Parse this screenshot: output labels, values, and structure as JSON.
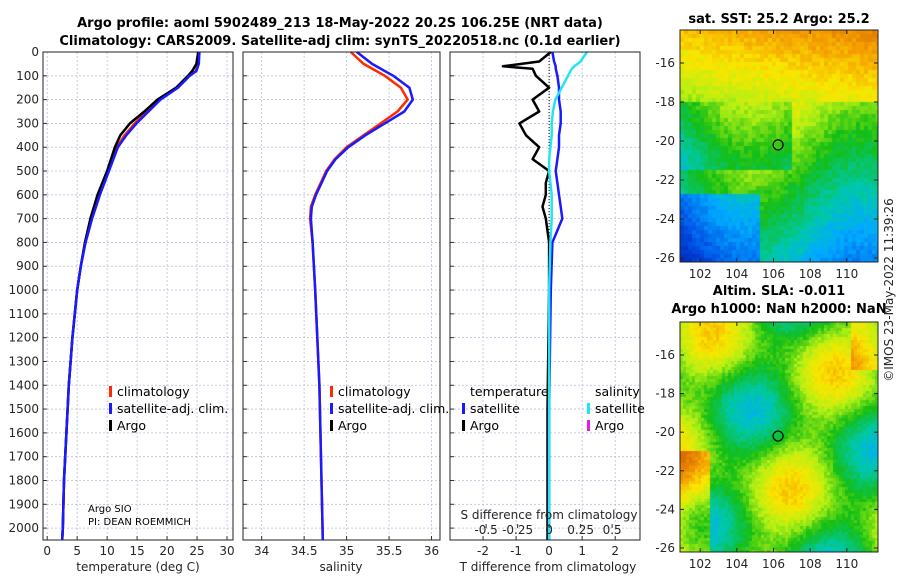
{
  "title_line1": "Argo profile: aoml 5902489_213 18-May-2022 20.2S 106.25E (NRT data)",
  "title_line2": "Climatology: CARS2009. Satellite-adj clim: synTS_20220518.nc (0.1d earlier)",
  "timestamp": "©IMOS 23-May-2022 11:39:26",
  "colors": {
    "climatology": "#ff2a00",
    "satellite_clim": "#1a1aff",
    "argo": "#000000",
    "sal_satellite": "#22e5f0",
    "sal_argo": "#e020e0",
    "grid": "#b8bfe0"
  },
  "chart_data": [
    {
      "type": "line",
      "name": "temperature",
      "xlabel": "temperature (deg C)",
      "ylabel": "",
      "xlim": [
        -0.7,
        31
      ],
      "ylim": [
        2050,
        0
      ],
      "xticks": [
        0,
        5,
        10,
        15,
        20,
        25,
        30
      ],
      "yticks": [
        0,
        100,
        200,
        300,
        400,
        500,
        600,
        700,
        800,
        900,
        1000,
        1100,
        1200,
        1300,
        1400,
        1500,
        1600,
        1700,
        1800,
        1900,
        2000
      ],
      "grid": true,
      "legend": [
        "climatology",
        "satellite-adj. clim.",
        "Argo"
      ],
      "legend_position": "center-right",
      "annotation": [
        "Argo SIO",
        "PI: DEAN ROEMMICH"
      ],
      "depth": [
        0,
        50,
        80,
        100,
        150,
        200,
        250,
        300,
        350,
        400,
        500,
        600,
        700,
        800,
        900,
        1000,
        1200,
        1400,
        1600,
        1800,
        2000,
        2050
      ],
      "series": [
        {
          "name": "climatology",
          "values": [
            25.3,
            25.2,
            24.8,
            23.6,
            21.6,
            18.6,
            16.6,
            14.6,
            12.9,
            11.6,
            10.1,
            8.6,
            7.3,
            6.3,
            5.6,
            5.0,
            4.2,
            3.6,
            3.2,
            2.8,
            2.6,
            2.5
          ]
        },
        {
          "name": "satellite-adj. clim.",
          "values": [
            25.4,
            25.3,
            24.9,
            23.8,
            21.8,
            18.9,
            16.9,
            14.9,
            13.2,
            11.8,
            10.3,
            8.8,
            7.5,
            6.4,
            5.6,
            5.0,
            4.2,
            3.6,
            3.2,
            2.8,
            2.6,
            2.5
          ]
        },
        {
          "name": "Argo",
          "values": [
            25.2,
            24.9,
            24.2,
            23.5,
            21.5,
            18.4,
            16.2,
            13.8,
            12.2,
            11.3,
            10.0,
            8.4,
            7.2,
            6.3,
            5.6,
            5.0,
            4.2,
            3.6,
            3.2,
            2.8,
            2.6,
            2.5
          ]
        }
      ]
    },
    {
      "type": "line",
      "name": "salinity",
      "xlabel": "salinity",
      "xlim": [
        33.78,
        36.1
      ],
      "ylim": [
        2050,
        0
      ],
      "xticks": [
        34,
        34.5,
        35,
        35.5,
        36
      ],
      "grid": true,
      "legend": [
        "climatology",
        "satellite-adj. clim.",
        "Argo"
      ],
      "legend_position": "center-right",
      "depth": [
        0,
        50,
        100,
        150,
        200,
        250,
        300,
        350,
        400,
        450,
        500,
        600,
        650,
        700,
        800,
        1000,
        1400,
        2050
      ],
      "series": [
        {
          "name": "climatology",
          "values": [
            35.05,
            35.2,
            35.45,
            35.64,
            35.72,
            35.6,
            35.4,
            35.2,
            35.0,
            34.86,
            34.76,
            34.63,
            34.58,
            34.57,
            34.6,
            34.63,
            34.68,
            34.72
          ]
        },
        {
          "name": "satellite-adj. clim.",
          "values": [
            35.12,
            35.3,
            35.55,
            35.74,
            35.78,
            35.68,
            35.45,
            35.22,
            35.02,
            34.87,
            34.77,
            34.64,
            34.59,
            34.58,
            34.6,
            34.63,
            34.68,
            34.72
          ]
        }
      ]
    },
    {
      "type": "line",
      "name": "difference",
      "xlabel": "T difference from climatology",
      "xlabel_top": "S difference from climatology",
      "xlim": [
        -3,
        2.75
      ],
      "ylim": [
        2050,
        0
      ],
      "xticks": [
        -2,
        -1,
        0,
        1,
        2
      ],
      "s_xticks": [
        -0.5,
        -0.25,
        0,
        0.25,
        0.5
      ],
      "s_xtick_labels": [
        "-0.5",
        "-0.25",
        "0",
        "0.25",
        "0.5"
      ],
      "grid": true,
      "legend_temperature_title": "temperature",
      "legend_salinity_title": "salinity",
      "legend_temperature": [
        "satellite",
        "Argo"
      ],
      "legend_salinity": [
        "satellite",
        "Argo"
      ],
      "depth": [
        0,
        40,
        60,
        70,
        100,
        150,
        200,
        250,
        300,
        350,
        400,
        450,
        500,
        550,
        600,
        650,
        700,
        800,
        1000,
        1500,
        2050
      ],
      "series": [
        {
          "name": "T Argo",
          "values": [
            0.05,
            -0.3,
            -1.4,
            -0.5,
            -0.4,
            0.0,
            -0.5,
            -0.3,
            -0.9,
            -0.7,
            -0.3,
            -0.5,
            0.0,
            -0.1,
            -0.1,
            -0.2,
            -0.1,
            0.0,
            0.0,
            -0.05,
            -0.05
          ]
        },
        {
          "name": "T satellite",
          "values": [
            0.1,
            0.15,
            0.2,
            0.2,
            0.25,
            0.3,
            0.3,
            0.35,
            0.35,
            0.3,
            0.3,
            0.25,
            0.2,
            0.25,
            0.3,
            0.35,
            0.4,
            0.1,
            0.05,
            0.0,
            0.0
          ]
        },
        {
          "name": "S satellite",
          "values": [
            0.3,
            0.25,
            0.2,
            0.18,
            0.15,
            0.1,
            0.05,
            0.03,
            0.02,
            0.02,
            0.01,
            0.0,
            0.0,
            0.01,
            0.02,
            0.02,
            0.02,
            0.01,
            0.0,
            0.0,
            0.0
          ]
        }
      ]
    },
    {
      "type": "heatmap",
      "name": "sst-map",
      "title": "sat. SST: 25.2 Argo: 25.2",
      "xticks": [
        102,
        104,
        106,
        108,
        110
      ],
      "yticks": [
        -16,
        -18,
        -20,
        -22,
        -24,
        -26
      ],
      "xlim": [
        100.9,
        111.7
      ],
      "ylim": [
        -26.2,
        -14.3
      ],
      "marker": {
        "lon": 106.25,
        "lat": -20.2
      }
    },
    {
      "type": "heatmap",
      "name": "sla-map",
      "title": "Altim. SLA: -0.011",
      "subtitle": "Argo h1000: NaN h2000: NaN",
      "xticks": [
        102,
        104,
        106,
        108,
        110
      ],
      "yticks": [
        -16,
        -18,
        -20,
        -22,
        -24,
        -26
      ],
      "xlim": [
        100.9,
        111.7
      ],
      "ylim": [
        -26.2,
        -14.3
      ],
      "marker": {
        "lon": 106.25,
        "lat": -20.2
      }
    }
  ]
}
